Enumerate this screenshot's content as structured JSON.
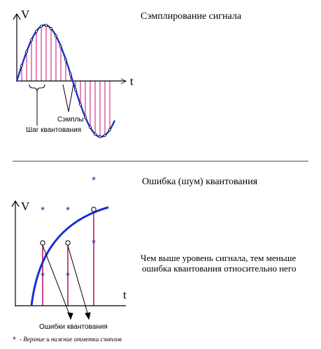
{
  "top": {
    "title": "Сэмплирование сигнала",
    "axis_v": "V",
    "axis_t": "> t",
    "label_samples": "Сэмплы",
    "label_step": "Шаг квантования"
  },
  "bottom": {
    "title": "Ошибка (шум) квантования",
    "axis_v": "V",
    "axis_t": "t",
    "description_line1": "Чем выше уровень сигнала, тем меньше",
    "description_line2": "ошибка квантования относительно него",
    "label_errors": "Ошибки квантования",
    "legend": "- Верхние и нижние отметки сэмплов",
    "legend_marker": "*"
  },
  "colors": {
    "signal": "#1a2fd1",
    "sample": "#c0166f",
    "marker": "#2b2f8c",
    "axis": "#000000",
    "divider": "#4a4a4a"
  }
}
